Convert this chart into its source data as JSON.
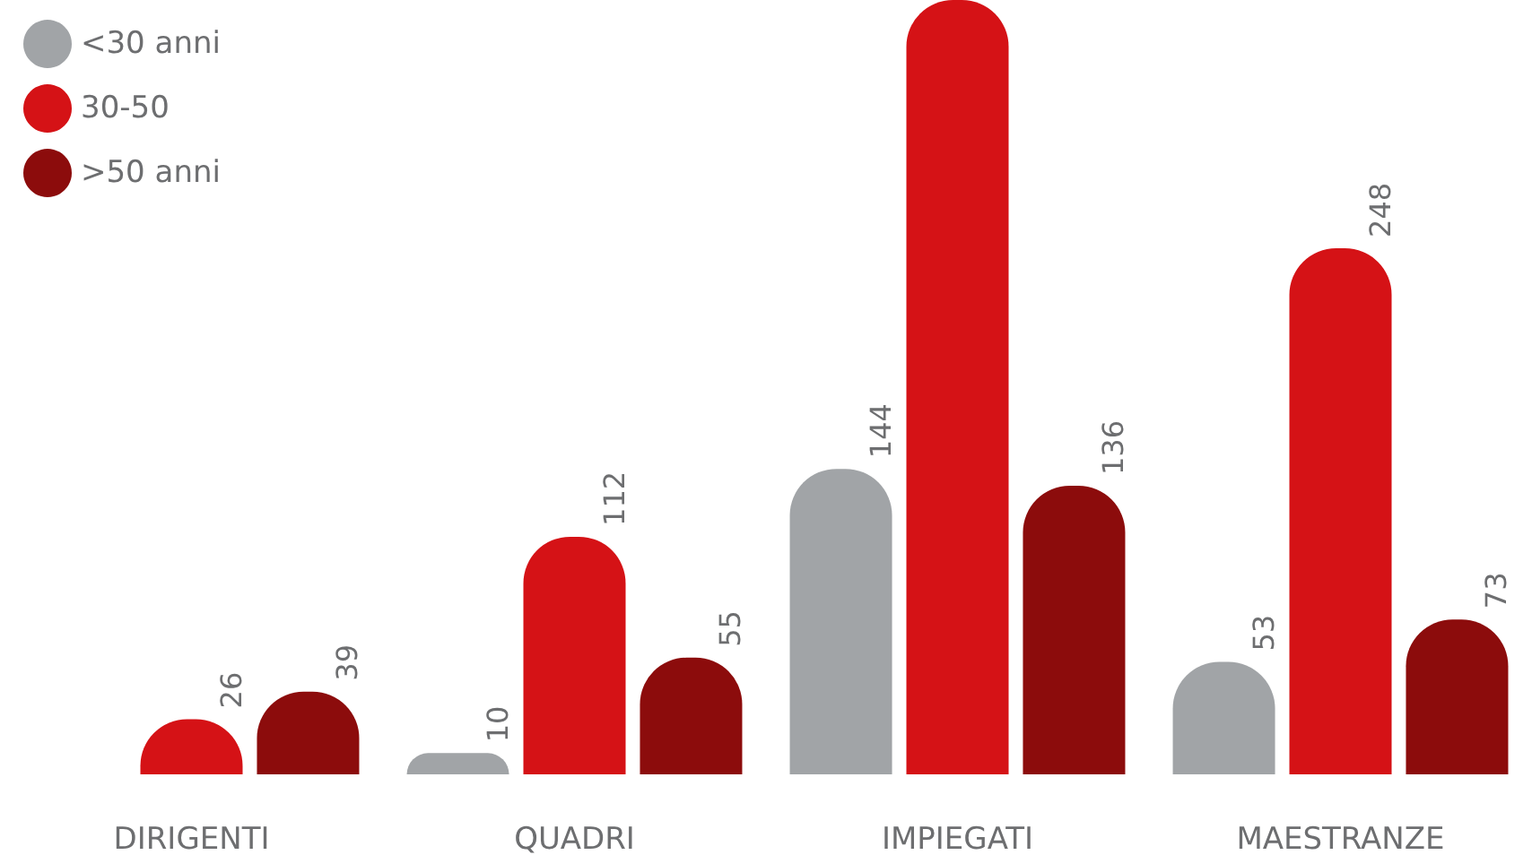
{
  "chart_data": {
    "type": "bar",
    "categories": [
      "DIRIGENTI",
      "QUADRI",
      "IMPIEGATI",
      "MAESTRANZE"
    ],
    "series": [
      {
        "name": "<30 anni",
        "color": "#a1a4a7",
        "values": [
          null,
          10,
          144,
          53
        ],
        "value_labels": [
          null,
          "10",
          "144",
          "53"
        ]
      },
      {
        "name": "30-50",
        "color": "#d51216",
        "values": [
          26,
          112,
          365,
          248
        ],
        "value_labels": [
          "26",
          "112",
          null,
          "248"
        ]
      },
      {
        "name": ">50 anni",
        "color": "#8c0c0c",
        "values": [
          39,
          55,
          136,
          73
        ],
        "value_labels": [
          "39",
          "55",
          "136",
          "73"
        ]
      }
    ],
    "ylim": [
      0,
      365
    ],
    "legend": "top left",
    "tick_labels": "x"
  }
}
